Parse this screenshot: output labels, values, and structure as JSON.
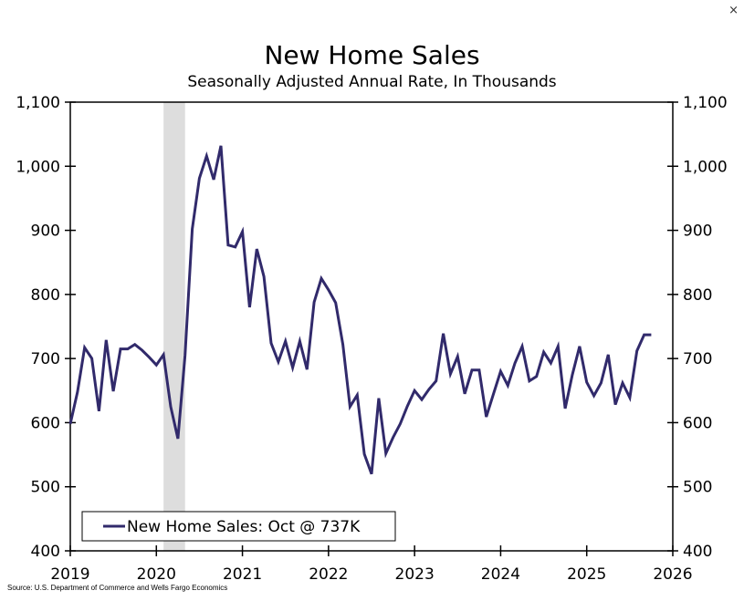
{
  "close_label": "×",
  "chart_data": {
    "type": "line",
    "title": "New Home Sales",
    "subtitle": "Seasonally Adjusted Annual Rate, In Thousands",
    "source": "Source: U.S. Department of Commerce and Wells Fargo Economics",
    "xlim": [
      2019,
      2026
    ],
    "ylim": [
      400,
      1100
    ],
    "x_ticks": [
      "2019",
      "2020",
      "2021",
      "2022",
      "2023",
      "2024",
      "2025",
      "2026"
    ],
    "y_ticks": [
      "400",
      "500",
      "600",
      "700",
      "800",
      "900",
      "1,000",
      "1,100"
    ],
    "y_tick_values": [
      400,
      500,
      600,
      700,
      800,
      900,
      1000,
      1100
    ],
    "grid": false,
    "legend_placement": "bottom-left",
    "recession_shading": {
      "start": "2020-02",
      "end": "2020-04",
      "color": "#dddddd"
    },
    "start_month": "2019-01",
    "series": [
      {
        "name": "New Home Sales: Oct @ 737K",
        "color": "#312a6b",
        "values": [
          598,
          648,
          717,
          700,
          618,
          729,
          649,
          715,
          715,
          722,
          713,
          702,
          690,
          706,
          625,
          575,
          705,
          902,
          981,
          1016,
          979,
          1032,
          877,
          874,
          898,
          780,
          871,
          828,
          724,
          695,
          727,
          686,
          727,
          683,
          788,
          825,
          807,
          787,
          722,
          625,
          643,
          551,
          520,
          638,
          552,
          577,
          598,
          626,
          650,
          636,
          652,
          665,
          739,
          676,
          703,
          645,
          682,
          682,
          609,
          645,
          680,
          658,
          693,
          719,
          665,
          672,
          710,
          693,
          719,
          622,
          675,
          719,
          663,
          642,
          662,
          706,
          628,
          662,
          639,
          712,
          737,
          737
        ]
      }
    ]
  }
}
